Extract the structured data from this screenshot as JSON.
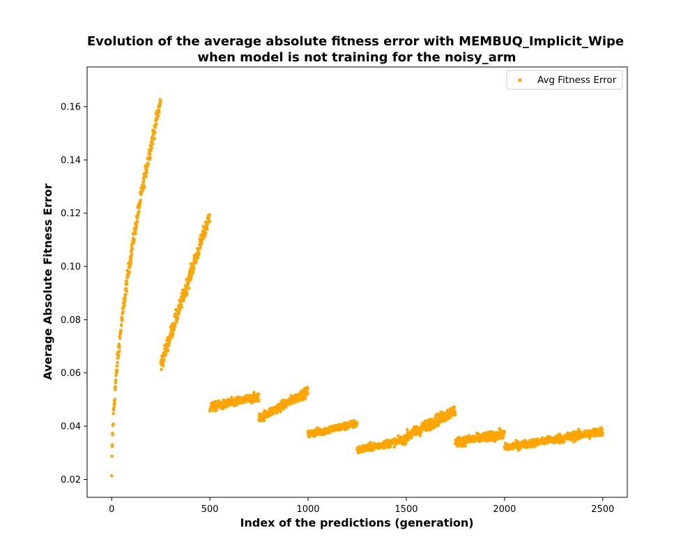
{
  "chart_data": {
    "type": "scatter",
    "title_lines": [
      "Evolution of the average absolute fitness error with MEMBUQ_Implicit_Wipe",
      "when model is not training for the noisy_arm"
    ],
    "xlabel": "Index of the predictions (generation)",
    "ylabel": "Average Absolute Fitness Error",
    "xlim": [
      -125,
      2625
    ],
    "ylim": [
      0.0133,
      0.1749
    ],
    "x_ticks": [
      0,
      500,
      1000,
      1500,
      2000,
      2500
    ],
    "y_ticks": [
      0.02,
      0.04,
      0.06,
      0.08,
      0.1,
      0.12,
      0.14,
      0.16
    ],
    "y_tick_labels": [
      "0.02",
      "0.04",
      "0.06",
      "0.08",
      "0.10",
      "0.12",
      "0.14",
      "0.16"
    ],
    "grid": false,
    "legend_position": "upper right",
    "color": "#FFA500",
    "series": [
      {
        "name": "Avg Fitness Error",
        "segments": [
          {
            "x_range": [
              0,
              249
            ],
            "y_start": 0.02,
            "y_end": 0.162,
            "shape": "sqrt",
            "noise": 0.002
          },
          {
            "x_range": [
              250,
              499
            ],
            "y_start": 0.063,
            "y_end": 0.119,
            "shape": "linear",
            "noise": 0.002
          },
          {
            "x_range": [
              500,
              749
            ],
            "y_start": 0.047,
            "y_end": 0.051,
            "shape": "linear",
            "noise": 0.0012
          },
          {
            "x_range": [
              750,
              999
            ],
            "y_start": 0.043,
            "y_end": 0.053,
            "shape": "linear",
            "noise": 0.0012
          },
          {
            "x_range": [
              1000,
              1249
            ],
            "y_start": 0.037,
            "y_end": 0.041,
            "shape": "linear",
            "noise": 0.001
          },
          {
            "x_range": [
              1250,
              1499
            ],
            "y_start": 0.031,
            "y_end": 0.035,
            "shape": "linear",
            "noise": 0.001
          },
          {
            "x_range": [
              1500,
              1749
            ],
            "y_start": 0.036,
            "y_end": 0.046,
            "shape": "linear",
            "noise": 0.0015
          },
          {
            "x_range": [
              1750,
              1999
            ],
            "y_start": 0.034,
            "y_end": 0.037,
            "shape": "linear",
            "noise": 0.0012
          },
          {
            "x_range": [
              2000,
              2249
            ],
            "y_start": 0.032,
            "y_end": 0.035,
            "shape": "linear",
            "noise": 0.001
          },
          {
            "x_range": [
              2250,
              2499
            ],
            "y_start": 0.035,
            "y_end": 0.038,
            "shape": "linear",
            "noise": 0.0012
          }
        ]
      }
    ]
  }
}
